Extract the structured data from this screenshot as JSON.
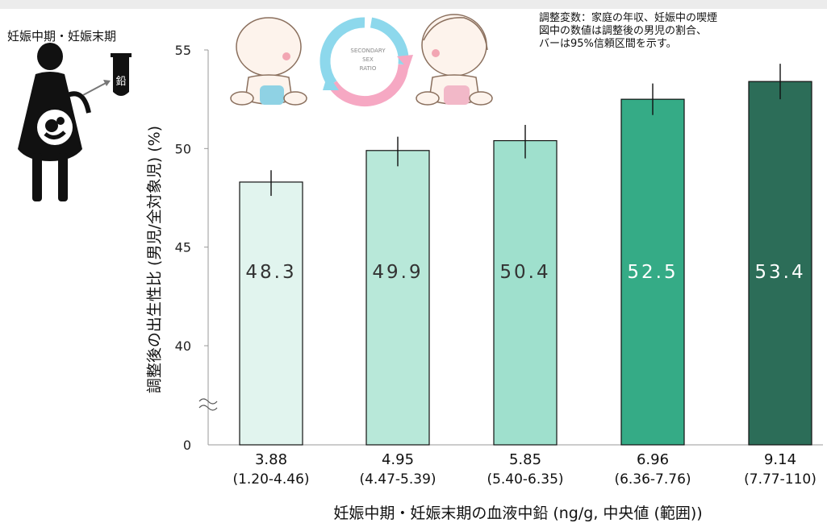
{
  "header": {
    "mother_label": "妊娠中期・妊娠末期",
    "tube_label": "鉛",
    "logo_lines": [
      "SECONDARY",
      "SEX",
      "RATIO"
    ]
  },
  "notes": {
    "line1": "調整変数：家庭の年収、妊娠中の喫煙",
    "line2": "図中の数値は調整後の男児の割合、",
    "line3": "バーは95%信頼区間を示す。"
  },
  "chart_data": {
    "type": "bar",
    "ylabel": "調整後の出生性比 (男児/全対象児) (%)",
    "xlabel": "妊娠中期・妊娠末期の血液中鉛 (ng/g, 中央値 (範囲))",
    "yticks": [
      "55",
      "50",
      "45",
      "40",
      "0"
    ],
    "ylim": [
      35,
      55
    ],
    "axis_break": true,
    "categories": [
      {
        "median": "3.88",
        "range": "(1.20-4.46)"
      },
      {
        "median": "4.95",
        "range": "(4.47-5.39)"
      },
      {
        "median": "5.85",
        "range": "(5.40-6.35)"
      },
      {
        "median": "6.96",
        "range": "(6.36-7.76)"
      },
      {
        "median": "9.14",
        "range": "(7.77-110)"
      }
    ],
    "values": [
      48.3,
      49.9,
      50.4,
      52.5,
      53.4
    ],
    "value_labels": [
      "48.3",
      "49.9",
      "50.4",
      "52.5",
      "53.4"
    ],
    "error_low": [
      47.6,
      49.1,
      49.5,
      51.7,
      52.5
    ],
    "error_high": [
      48.9,
      50.6,
      51.2,
      53.3,
      54.3
    ],
    "colors": [
      "#e1f4ee",
      "#b8e8d9",
      "#9fe0cd",
      "#35ab86",
      "#2c6d58"
    ],
    "label_colors": [
      "#333333",
      "#333333",
      "#333333",
      "#ffffff",
      "#ffffff"
    ],
    "grid": false
  }
}
